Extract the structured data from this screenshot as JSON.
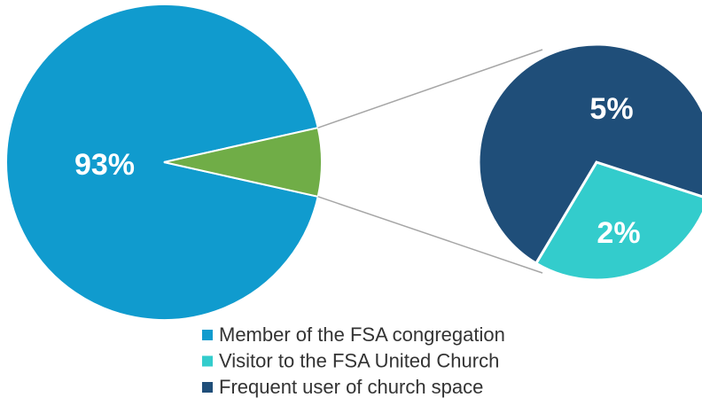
{
  "chart_data": {
    "type": "pie-of-pie",
    "categories": [
      "Member of the FSA congregation",
      "Visitor to the FSA United Church",
      "Frequent user of church space"
    ],
    "values": [
      93,
      2,
      5
    ],
    "value_labels": [
      "93%",
      "2%",
      "5%"
    ],
    "colors": [
      "#109bce",
      "#33cccc",
      "#1f4e79"
    ],
    "combined_color": "#70ad47",
    "legend": "bottom"
  }
}
